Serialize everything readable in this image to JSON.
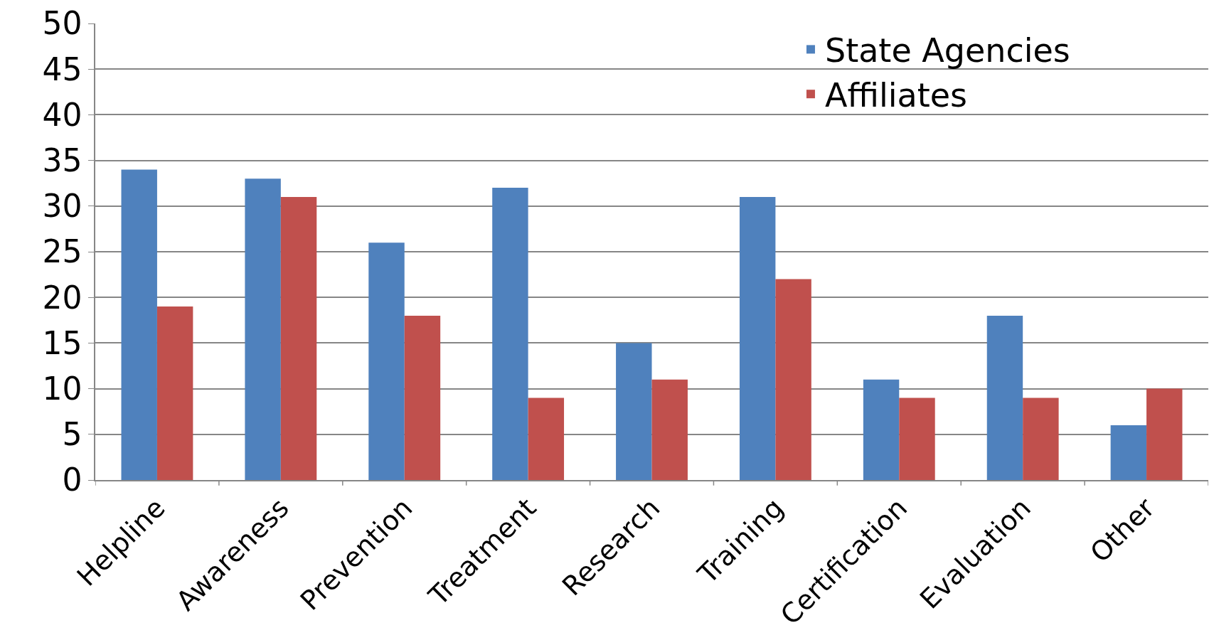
{
  "chart_data": {
    "type": "bar",
    "categories": [
      "Helpline",
      "Awareness",
      "Prevention",
      "Treatment",
      "Research",
      "Training",
      "Certification",
      "Evaluation",
      "Other"
    ],
    "series": [
      {
        "name": "State Agencies",
        "color": "#4f81bd",
        "values": [
          34,
          33,
          26,
          32,
          15,
          31,
          11,
          18,
          6
        ]
      },
      {
        "name": "Affiliates",
        "color": "#c0504d",
        "values": [
          19,
          31,
          18,
          9,
          11,
          22,
          9,
          9,
          10
        ]
      }
    ],
    "ylim": [
      0,
      50
    ],
    "yticks": [
      0,
      5,
      10,
      15,
      20,
      25,
      30,
      35,
      40,
      45,
      50
    ],
    "grid": "y",
    "legend": "top right"
  }
}
